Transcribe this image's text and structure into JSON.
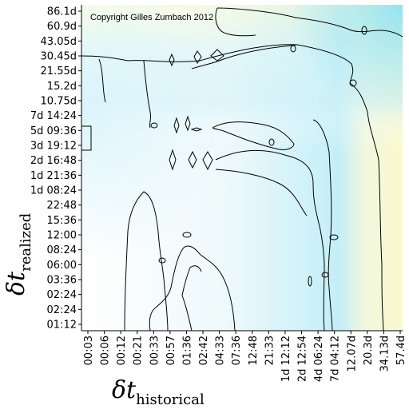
{
  "chart_data": {
    "type": "heatmap",
    "copyright": "Copyright Gilles Zumbach 2012",
    "xlabel": {
      "symbol": "δt",
      "subscript": "historical"
    },
    "ylabel": {
      "symbol": "δt",
      "subscript": "realized"
    },
    "x_ticks": [
      "00:03",
      "00:06",
      "00:12",
      "00:21",
      "00:33",
      "00:57",
      "01:36",
      "02:42",
      "04:33",
      "07:36",
      "12:48",
      "21:33",
      "1d 12:12",
      "2d 12:54",
      "4d 06:24",
      "7d 04:12",
      "12.07d",
      "20.3d",
      "34.13d",
      "57.4d"
    ],
    "y_ticks": [
      "86.1d",
      "60.9d",
      "43.05d",
      "30.45d",
      "21.55d",
      "15.2d",
      "10.75d",
      "7d 14:24",
      "5d 09:36",
      "3d 19:12",
      "2d 16:48",
      "1d 21:36",
      "1d 08:24",
      "22:48",
      "15:36",
      "12:00",
      "08:24",
      "06:00",
      "03:36",
      "02:24",
      "02:24",
      "01:12"
    ],
    "colors": {
      "low": "#ffffff",
      "mid": "#c7f0f8",
      "high": "#faf8cc",
      "corner": "#9ee6f5",
      "line": "#000000"
    }
  }
}
